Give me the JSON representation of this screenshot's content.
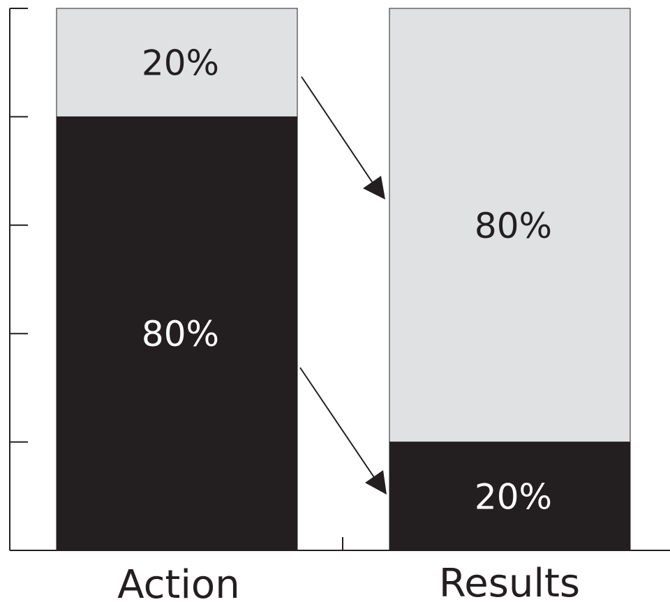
{
  "chart_data": {
    "type": "bar",
    "stacked": true,
    "percent": true,
    "categories": [
      "Action",
      "Results"
    ],
    "series": [
      {
        "values": [
          80,
          20
        ]
      },
      {
        "values": [
          20,
          80
        ]
      }
    ],
    "data_labels": [
      [
        "80%",
        "20%"
      ],
      [
        "20%",
        "80%"
      ]
    ],
    "ylim": [
      0,
      100
    ],
    "y_tick_count": 5,
    "grid": false,
    "legend": "none",
    "annotations": [
      {
        "type": "arrow",
        "from": "Action 20%",
        "to": "Results 80%"
      },
      {
        "type": "arrow",
        "from": "Action 80%",
        "to": "Results 20%"
      }
    ],
    "colors": {
      "dark": "#231f20",
      "light": "#e0e1e3",
      "label_on_dark": "#ffffff",
      "label_on_light": "#231f20",
      "axis": "#231f20"
    }
  }
}
